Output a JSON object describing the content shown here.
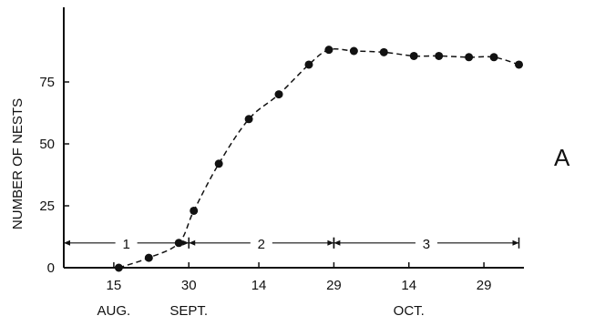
{
  "chart_data": {
    "type": "line",
    "title": "",
    "panel_label": "A",
    "ylabel": "NUMBER OF NESTS",
    "xlabel": "",
    "x_axis": {
      "ticks": [
        {
          "x": 15,
          "label": "15"
        },
        {
          "x": 30,
          "label": "30"
        },
        {
          "x": 44,
          "label": "14"
        },
        {
          "x": 59,
          "label": "29"
        },
        {
          "x": 74,
          "label": "14"
        },
        {
          "x": 89,
          "label": "29"
        }
      ],
      "months": [
        {
          "x": 15,
          "label": "AUG."
        },
        {
          "x": 30,
          "label": "SEPT."
        },
        {
          "x": 74,
          "label": "OCT."
        }
      ],
      "range": [
        5,
        97
      ]
    },
    "y_axis": {
      "ticks": [
        0,
        25,
        50,
        75
      ],
      "range": [
        0,
        100
      ]
    },
    "grid": false,
    "series": [
      {
        "style": "dashed line with filled circle markers",
        "points": [
          {
            "x": 16,
            "y": 0
          },
          {
            "x": 22,
            "y": 4
          },
          {
            "x": 28,
            "y": 10
          },
          {
            "x": 31,
            "y": 23
          },
          {
            "x": 36,
            "y": 42
          },
          {
            "x": 42,
            "y": 60
          },
          {
            "x": 48,
            "y": 70
          },
          {
            "x": 54,
            "y": 82
          },
          {
            "x": 58,
            "y": 88
          },
          {
            "x": 63,
            "y": 87.5
          },
          {
            "x": 69,
            "y": 87
          },
          {
            "x": 75,
            "y": 85.5
          },
          {
            "x": 80,
            "y": 85.5
          },
          {
            "x": 86,
            "y": 85
          },
          {
            "x": 91,
            "y": 85
          },
          {
            "x": 96,
            "y": 82
          }
        ]
      }
    ],
    "phases": {
      "y": 10,
      "intervals": [
        {
          "label": "1",
          "start": 5,
          "end": 30
        },
        {
          "label": "2",
          "start": 30,
          "end": 59
        },
        {
          "label": "3",
          "start": 59,
          "end": 96
        }
      ]
    }
  }
}
